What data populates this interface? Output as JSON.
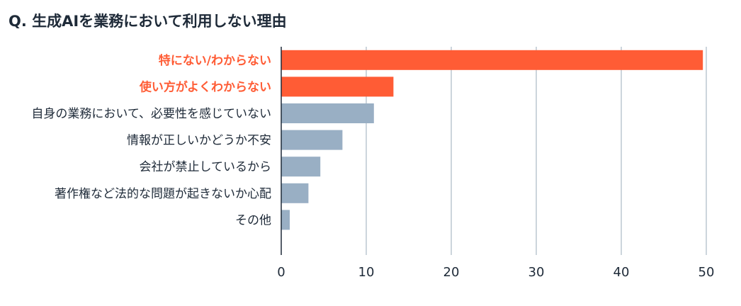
{
  "chart_data": {
    "type": "bar",
    "orientation": "horizontal",
    "title": "Q. 生成AIを業務において利用しない理由",
    "categories": [
      "特にない/わからない",
      "使い方がよくわからない",
      "自身の業務において、必要性を感じていない",
      "情報が正しいかどうか不安",
      "会社が禁止しているから",
      "著作権など法的な問題が起きないか心配",
      "その他"
    ],
    "values": [
      49.6,
      13.2,
      10.9,
      7.2,
      4.6,
      3.2,
      1.0
    ],
    "highlighted": [
      true,
      true,
      false,
      false,
      false,
      false,
      false
    ],
    "xlim": [
      0,
      50
    ],
    "xticks": [
      0,
      10,
      20,
      30,
      40,
      50
    ],
    "grid": true,
    "colors": {
      "highlight": "#ff5c35",
      "normal": "#99afc4",
      "grid": "#9aabba",
      "axis": "#1e2a38",
      "label": "#1e2a38"
    }
  }
}
